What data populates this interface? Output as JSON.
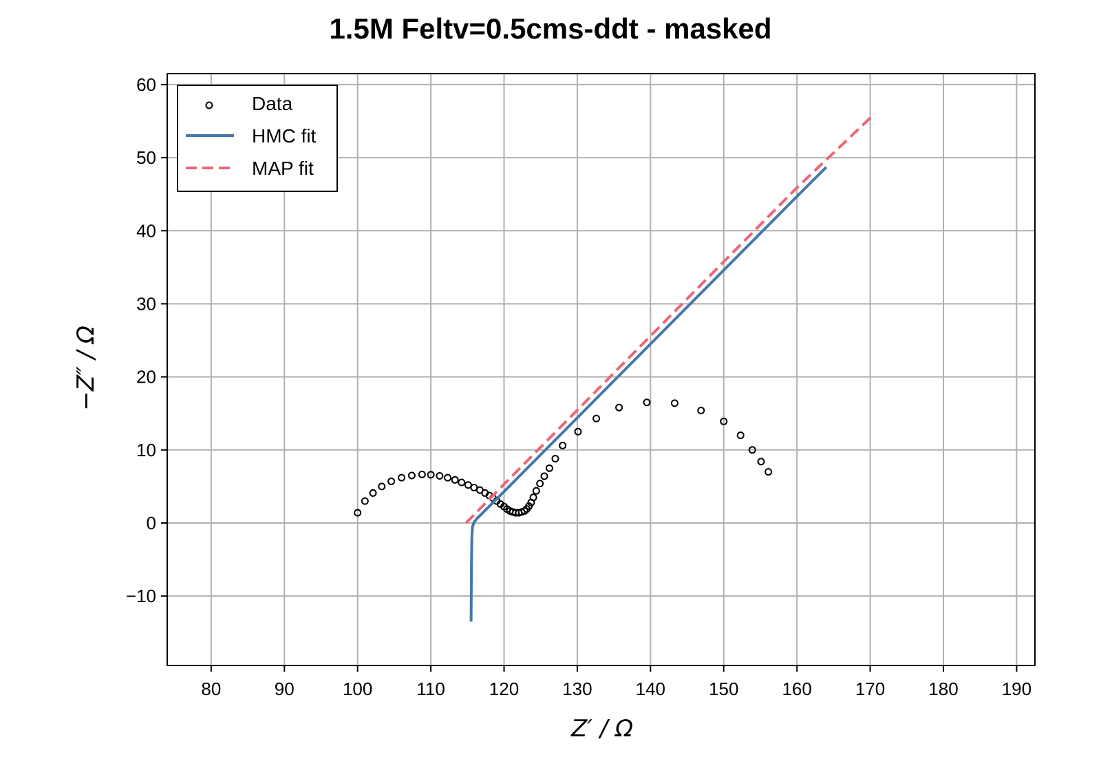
{
  "chart_data": {
    "type": "scatter",
    "title": "1.5M Feltv=0.5cms-ddt - masked",
    "xlabel": "Z′ / Ω",
    "ylabel": "−Z″ / Ω",
    "xlim": [
      74,
      192.5
    ],
    "ylim": [
      -19.5,
      61.5
    ],
    "xticks": [
      80,
      90,
      100,
      110,
      120,
      130,
      140,
      150,
      160,
      170,
      180,
      190
    ],
    "yticks": [
      -10,
      0,
      10,
      20,
      30,
      40,
      50,
      60
    ],
    "xtick_labels": [
      "80",
      "90",
      "100",
      "110",
      "120",
      "130",
      "140",
      "150",
      "160",
      "170",
      "180",
      "190"
    ],
    "ytick_labels": [
      "−10",
      "0",
      "10",
      "20",
      "30",
      "40",
      "50",
      "60"
    ],
    "grid": true,
    "legend_position": "top-left",
    "series": [
      {
        "name": "Data",
        "kind": "markers",
        "color": "#000000",
        "points": [
          [
            100.0,
            1.4
          ],
          [
            101.0,
            3.0
          ],
          [
            102.1,
            4.1
          ],
          [
            103.3,
            5.0
          ],
          [
            104.6,
            5.7
          ],
          [
            106.0,
            6.2
          ],
          [
            107.4,
            6.5
          ],
          [
            108.8,
            6.65
          ],
          [
            110.0,
            6.6
          ],
          [
            111.2,
            6.45
          ],
          [
            112.3,
            6.2
          ],
          [
            113.3,
            5.9
          ],
          [
            114.2,
            5.55
          ],
          [
            115.1,
            5.2
          ],
          [
            115.9,
            4.85
          ],
          [
            116.7,
            4.5
          ],
          [
            117.4,
            4.1
          ],
          [
            118.0,
            3.75
          ],
          [
            118.5,
            3.4
          ],
          [
            119.0,
            3.0
          ],
          [
            119.5,
            2.6
          ],
          [
            120.0,
            2.25
          ],
          [
            120.4,
            1.9
          ],
          [
            120.8,
            1.65
          ],
          [
            121.2,
            1.5
          ],
          [
            121.6,
            1.4
          ],
          [
            122.0,
            1.4
          ],
          [
            122.4,
            1.5
          ],
          [
            122.8,
            1.65
          ],
          [
            123.1,
            1.9
          ],
          [
            123.4,
            2.3
          ],
          [
            123.7,
            2.8
          ],
          [
            124.0,
            3.5
          ],
          [
            124.4,
            4.4
          ],
          [
            124.9,
            5.4
          ],
          [
            125.5,
            6.4
          ],
          [
            126.2,
            7.5
          ],
          [
            127.0,
            8.8
          ],
          [
            128.0,
            10.6
          ],
          [
            130.1,
            12.5
          ],
          [
            132.6,
            14.3
          ],
          [
            135.7,
            15.8
          ],
          [
            139.5,
            16.5
          ],
          [
            143.3,
            16.4
          ],
          [
            146.9,
            15.4
          ],
          [
            150.0,
            13.9
          ],
          [
            152.3,
            12.0
          ],
          [
            153.9,
            10.0
          ],
          [
            155.1,
            8.4
          ],
          [
            156.1,
            7.0
          ]
        ]
      },
      {
        "name": "HMC fit",
        "kind": "line",
        "color": "#4477aa",
        "points": [
          [
            115.5,
            -13.5
          ],
          [
            115.55,
            -6.0
          ],
          [
            115.6,
            -2.0
          ],
          [
            115.7,
            -0.5
          ],
          [
            115.9,
            0.1
          ],
          [
            116.3,
            0.6
          ],
          [
            120.0,
            4.3
          ],
          [
            130.0,
            14.4
          ],
          [
            140.0,
            24.5
          ],
          [
            150.0,
            34.6
          ],
          [
            160.0,
            44.7
          ],
          [
            164.0,
            48.7
          ]
        ]
      },
      {
        "name": "MAP fit",
        "kind": "dashed",
        "color": "#ee6677",
        "points": [
          [
            114.8,
            0.0
          ],
          [
            120.0,
            5.3
          ],
          [
            130.0,
            15.45
          ],
          [
            140.0,
            25.6
          ],
          [
            150.0,
            35.75
          ],
          [
            160.0,
            45.9
          ],
          [
            170.6,
            56.0
          ]
        ]
      }
    ]
  }
}
